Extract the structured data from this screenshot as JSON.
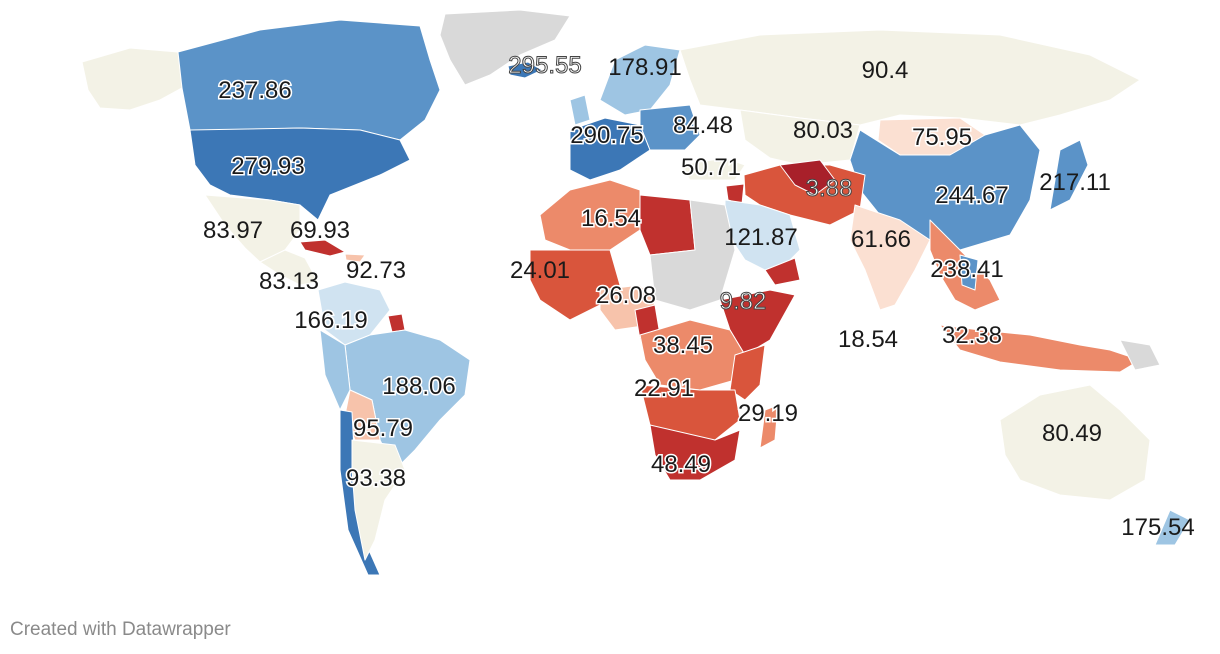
{
  "credit": "Created with Datawrapper",
  "colors": {
    "no_data": "#d9d9d9",
    "neutral": "#f3f2e6",
    "blue_dark": "#3c77b6",
    "blue_mid": "#5b93c8",
    "blue_light": "#9ec5e3",
    "blue_pale": "#d0e3f1",
    "red_dark": "#c0312e",
    "red_mid": "#d9553c",
    "red_light": "#ec8a6a",
    "red_pale": "#f7c3ab",
    "red_faint": "#fbe0d2"
  },
  "labels": [
    {
      "id": "canada",
      "text": "237.86"
    },
    {
      "id": "usa",
      "text": "279.93"
    },
    {
      "id": "greenland",
      "text": "295.55"
    },
    {
      "id": "scandinavia",
      "text": "178.91"
    },
    {
      "id": "russia",
      "text": "90.4"
    },
    {
      "id": "western-europe",
      "text": "290.75"
    },
    {
      "id": "central-europe",
      "text": "84.48"
    },
    {
      "id": "central-asia",
      "text": "80.03"
    },
    {
      "id": "mongolia",
      "text": "75.95"
    },
    {
      "id": "turkey",
      "text": "50.71"
    },
    {
      "id": "afghanistan",
      "text": "3.88"
    },
    {
      "id": "china",
      "text": "244.67"
    },
    {
      "id": "japan",
      "text": "217.11"
    },
    {
      "id": "libya",
      "text": "16.54"
    },
    {
      "id": "saudi-arabia",
      "text": "121.87"
    },
    {
      "id": "india",
      "text": "61.66"
    },
    {
      "id": "mexico",
      "text": "83.97"
    },
    {
      "id": "cuba",
      "text": "69.93"
    },
    {
      "id": "caribbean",
      "text": "92.73"
    },
    {
      "id": "central-america",
      "text": "83.13"
    },
    {
      "id": "west-africa",
      "text": "24.01"
    },
    {
      "id": "somalia",
      "text": "9.82"
    },
    {
      "id": "southeast-asia",
      "text": "238.41"
    },
    {
      "id": "colombia",
      "text": "166.19"
    },
    {
      "id": "nigeria",
      "text": "26.08"
    },
    {
      "id": "indian-ocean",
      "text": "18.54"
    },
    {
      "id": "indonesia",
      "text": "32.38"
    },
    {
      "id": "congo",
      "text": "38.45"
    },
    {
      "id": "brazil",
      "text": "188.06"
    },
    {
      "id": "angola",
      "text": "22.91"
    },
    {
      "id": "madagascar",
      "text": "29.19"
    },
    {
      "id": "bolivia",
      "text": "95.79"
    },
    {
      "id": "australia",
      "text": "80.49"
    },
    {
      "id": "south-africa",
      "text": "48.49"
    },
    {
      "id": "argentina",
      "text": "93.38"
    },
    {
      "id": "new-zealand",
      "text": "175.54"
    }
  ]
}
